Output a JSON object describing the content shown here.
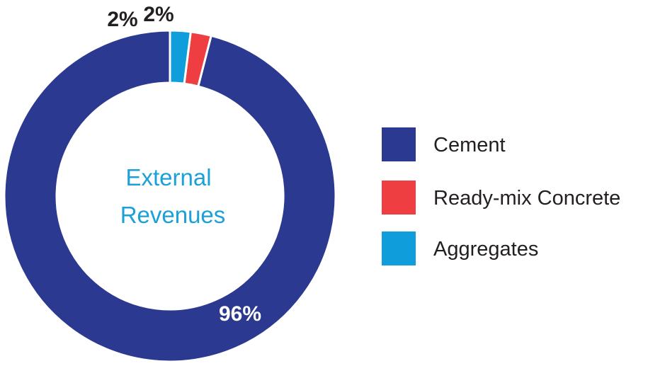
{
  "chart_data": {
    "type": "pie",
    "donut": true,
    "center_label": [
      "External",
      "Revenues"
    ],
    "categories": [
      "Cement",
      "Ready-mix Concrete",
      "Aggregates"
    ],
    "values": [
      96,
      2,
      2
    ],
    "data_labels": [
      "96%",
      "2%",
      "2%"
    ],
    "colors": [
      "#2b3990",
      "#ef3e42",
      "#0f9ddc"
    ],
    "legend_position": "right"
  }
}
